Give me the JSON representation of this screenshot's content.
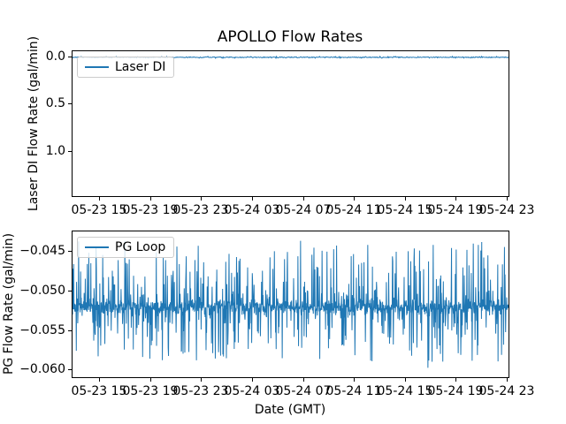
{
  "figure": {
    "title": "APOLLO Flow Rates"
  },
  "chart_data": [
    {
      "type": "line",
      "title": "APOLLO Flow Rates",
      "ylabel": "Laser DI Flow Rate (gal/min)",
      "xlabel": "",
      "grid": false,
      "legend": {
        "position": "upper left",
        "entries": [
          "Laser DI"
        ]
      },
      "series": [
        {
          "name": "Laser DI",
          "color": "#1f77b4",
          "baseline": 0.0,
          "noise_amplitude": 0.01,
          "summary": "Flat noisy trace holding ~0.0 gal/min across the entire time range"
        }
      ],
      "x_ticklabels": [
        "05-23 15",
        "05-23 19",
        "05-23 23",
        "05-24 03",
        "05-24 07",
        "05-24 11",
        "05-24 15",
        "05-24 19",
        "05-24 23"
      ],
      "y_ticks": [
        0.0,
        0.5,
        1.0
      ],
      "y_ticklabels": [
        "0.0",
        "0.5",
        "1.0"
      ],
      "ylim": [
        -0.065,
        1.486
      ],
      "x_range_note": "time axis from ~05-23 13:00 to ~05-24 23:10 GMT, ticks every 4 hours"
    },
    {
      "type": "line",
      "title": "",
      "ylabel": "PG Flow Rate (gal/min)",
      "xlabel": "Date (GMT)",
      "grid": false,
      "legend": {
        "position": "upper left",
        "entries": [
          "PG Loop"
        ]
      },
      "series": [
        {
          "name": "PG Loop",
          "color": "#1f77b4",
          "baseline": -0.0521,
          "dense_band": [
            -0.0533,
            -0.0509
          ],
          "spike_high": -0.0435,
          "spike_low": -0.0598,
          "summary": "Dense high-frequency noise centered near -0.052 gal/min with frequent spikes up toward -0.044 and down toward -0.060"
        }
      ],
      "x_ticklabels": [
        "05-23 15",
        "05-23 19",
        "05-23 23",
        "05-24 03",
        "05-24 07",
        "05-24 11",
        "05-24 15",
        "05-24 19",
        "05-24 23"
      ],
      "y_ticks": [
        -0.045,
        -0.05,
        -0.055,
        -0.06
      ],
      "y_ticklabels": [
        "−0.045",
        "−0.050",
        "−0.055",
        "−0.060"
      ],
      "ylim": [
        -0.0424,
        -0.0611
      ],
      "x_range_note": "time axis from ~05-23 13:00 to ~05-24 23:10 GMT, ticks every 4 hours"
    }
  ]
}
